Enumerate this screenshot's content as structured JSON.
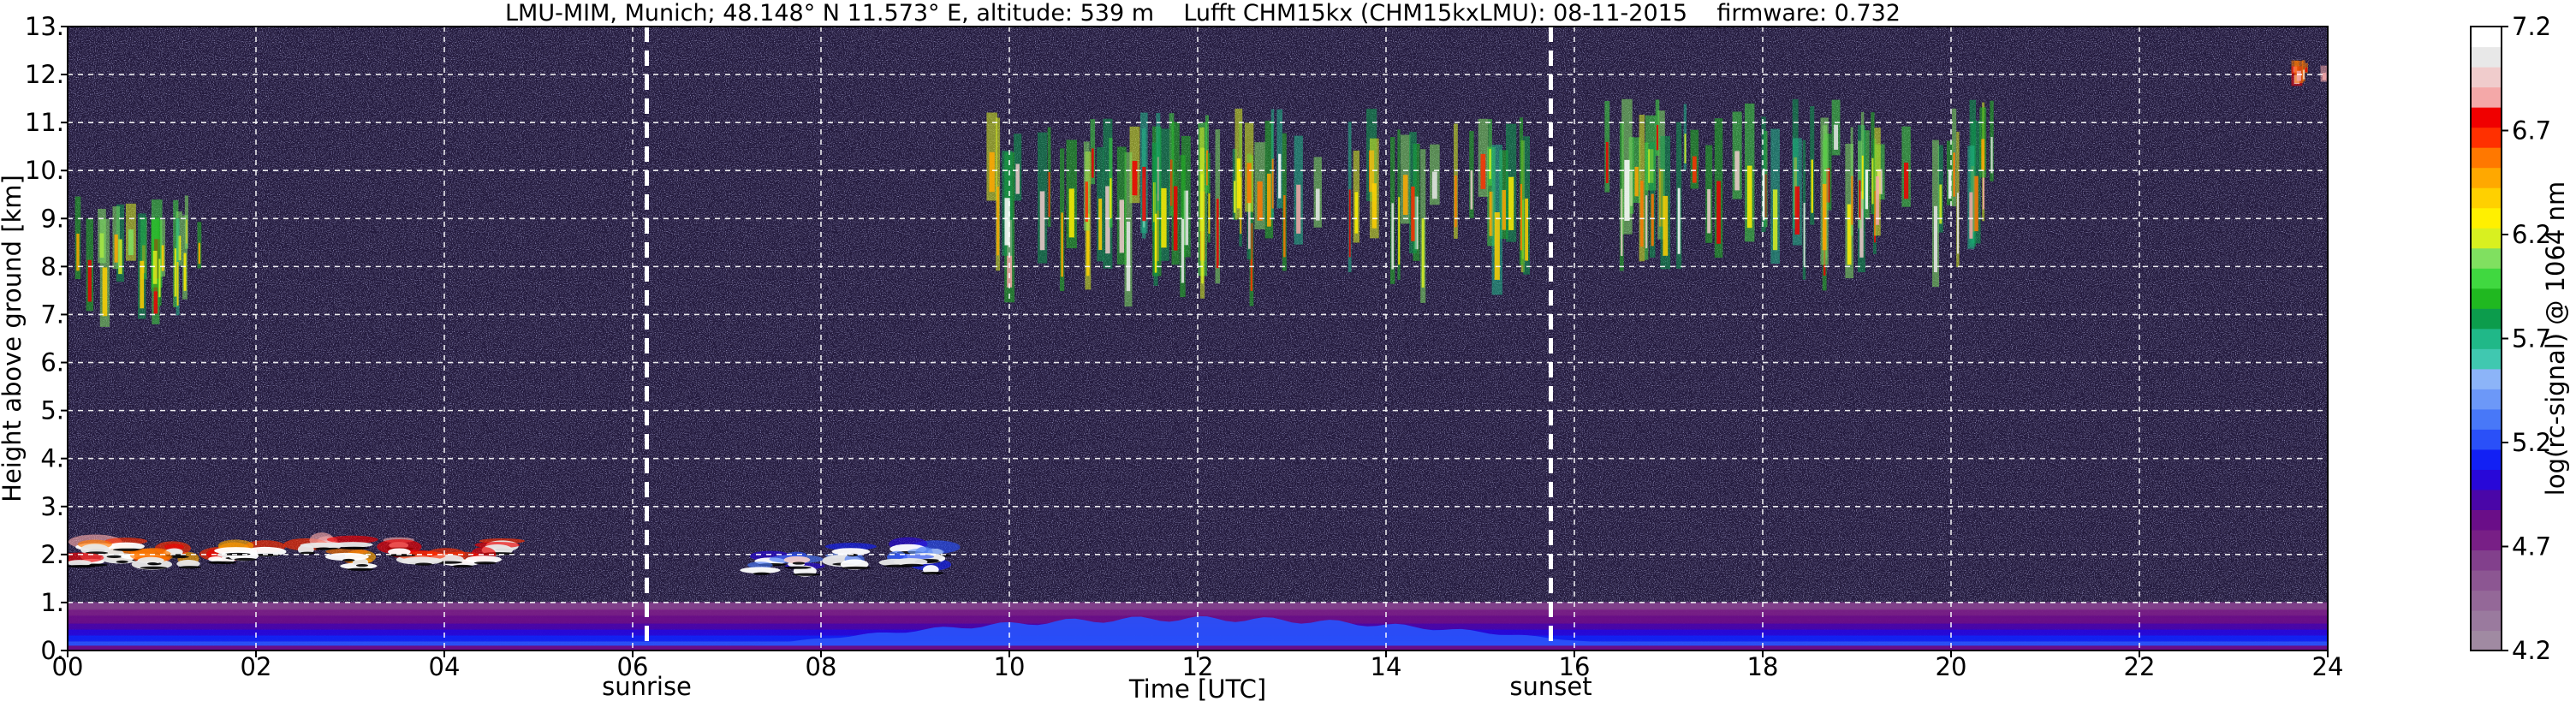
{
  "chart_data": {
    "type": "heatmap",
    "title": "LMU-MIM, Munich; 48.148° N 11.573° E, altitude: 539 m    Lufft CHM15kx (CHM15kxLMU): 08-11-2015    firmware: 0.732",
    "xlabel": "Time [UTC]",
    "ylabel": "Height above ground [km]",
    "xlim": [
      0,
      24
    ],
    "ylim": [
      0,
      13
    ],
    "x_ticks": [
      0,
      2,
      4,
      6,
      8,
      10,
      12,
      14,
      16,
      18,
      20,
      22,
      24
    ],
    "x_tick_labels": [
      "00",
      "02",
      "04",
      "06",
      "08",
      "10",
      "12",
      "14",
      "16",
      "18",
      "20",
      "22",
      "24"
    ],
    "y_ticks": [
      0,
      1,
      2,
      3,
      4,
      5,
      6,
      7,
      8,
      9,
      10,
      11,
      12,
      13
    ],
    "y_tick_labels": [
      "0.",
      "1.",
      "2.",
      "3.",
      "4.",
      "5.",
      "6.",
      "7.",
      "8.",
      "9.",
      "10.",
      "11.",
      "12.",
      "13."
    ],
    "grid": true,
    "annotations": [
      {
        "label": "sunrise",
        "x": 6.15
      },
      {
        "label": "sunset",
        "x": 15.75
      }
    ],
    "colorbar": {
      "label": "log(rc-signal) @ 1064 nm",
      "range": [
        4.2,
        7.2
      ],
      "ticks": [
        4.2,
        4.7,
        5.2,
        5.7,
        6.2,
        6.7,
        7.2
      ],
      "tick_labels": [
        "4.2",
        "4.7",
        "5.2",
        "5.7",
        "6.2",
        "6.7",
        "7.2"
      ],
      "colors": [
        "#a08aa2",
        "#9a7a9e",
        "#946898",
        "#8c5692",
        "#82408c",
        "#781f86",
        "#6a0e88",
        "#4a06a8",
        "#2808d8",
        "#1220f4",
        "#2a50f8",
        "#4878f8",
        "#6c98f8",
        "#8cb4f8",
        "#40c8b0",
        "#20b888",
        "#0c9c4c",
        "#20b820",
        "#40d840",
        "#80e060",
        "#d8f020",
        "#fff000",
        "#ffd000",
        "#ffa800",
        "#ff7800",
        "#ff3000",
        "#f00000",
        "#f4a8a8",
        "#f0cccc",
        "#e8e8e8",
        "#ffffff"
      ]
    },
    "layers": [
      {
        "name": "surface aerosol layer",
        "x": [
          0,
          24
        ],
        "y": [
          0,
          0.95
        ],
        "value_range": [
          4.6,
          5.3
        ]
      },
      {
        "name": "low cloud",
        "x": [
          0.1,
          4.7
        ],
        "y": [
          1.6,
          2.7
        ],
        "value_range": [
          6.5,
          7.2
        ]
      },
      {
        "name": "low cloud",
        "x": [
          7.3,
          9.3
        ],
        "y": [
          1.5,
          2.7
        ],
        "value_range": [
          5.0,
          7.2
        ]
      },
      {
        "name": "cirrus",
        "x": [
          0,
          1.6
        ],
        "y": [
          7.2,
          9.6
        ],
        "value_range": [
          5.7,
          6.9
        ]
      },
      {
        "name": "cirrus",
        "x": [
          9.8,
          15.5
        ],
        "y": [
          7.9,
          11.3
        ],
        "value_range": [
          5.7,
          7.2
        ]
      },
      {
        "name": "cirrus",
        "x": [
          16.2,
          20.5
        ],
        "y": [
          8.2,
          11.5
        ],
        "value_range": [
          5.7,
          7.2
        ]
      },
      {
        "name": "cirrus",
        "x": [
          23.5,
          24
        ],
        "y": [
          11.8,
          12.3
        ],
        "value_range": [
          6.5,
          7.2
        ]
      }
    ]
  }
}
